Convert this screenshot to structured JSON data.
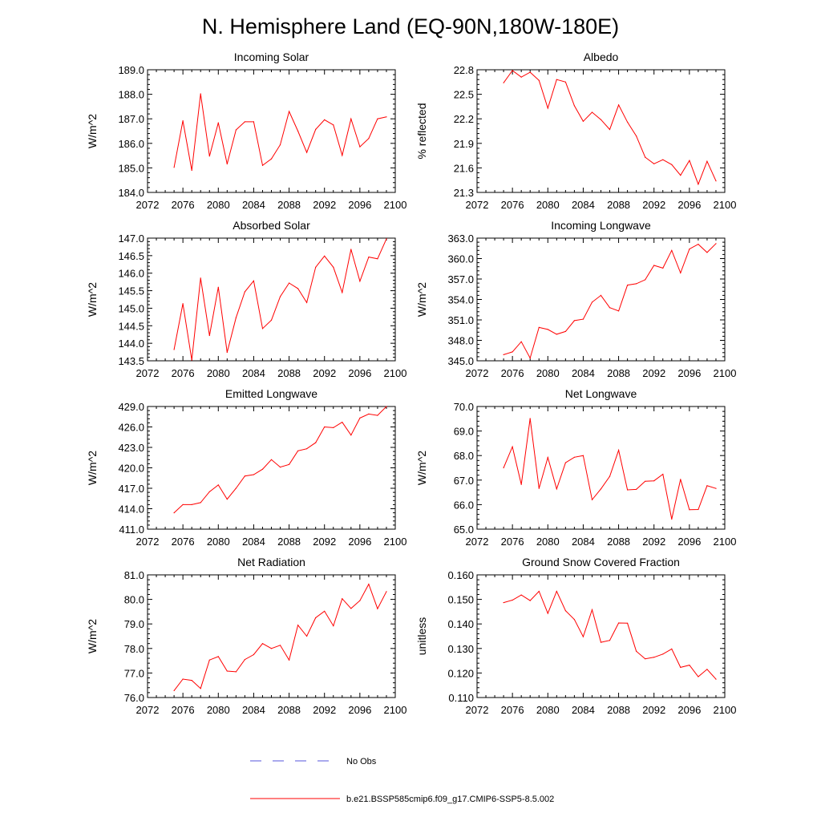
{
  "title": "N. Hemisphere Land (EQ-90N,180W-180E)",
  "legend": {
    "obs_label": "No Obs",
    "model_label": "b.e21.BSSP585cmip6.f09_g17.CMIP6-SSP5-8.5.002",
    "obs_color": "#5555dd",
    "model_color": "#ff0000"
  },
  "chart_data": [
    {
      "type": "line",
      "title": "Incoming Solar",
      "xlabel": "",
      "ylabel": "W/m^2",
      "xlim": [
        2072,
        2100
      ],
      "ylim": [
        184.0,
        189.0
      ],
      "xticks": [
        2072,
        2076,
        2080,
        2084,
        2088,
        2092,
        2096,
        2100
      ],
      "yticks": [
        "184.0",
        "185.0",
        "186.0",
        "187.0",
        "188.0",
        "189.0"
      ],
      "series": [
        {
          "color": "#ff0000",
          "x": [
            2075,
            2076,
            2077,
            2078,
            2079,
            2080,
            2081,
            2082,
            2083,
            2084,
            2085,
            2086,
            2087,
            2088,
            2089,
            2090,
            2091,
            2092,
            2093,
            2094,
            2095,
            2096,
            2097,
            2098,
            2099
          ],
          "values": [
            185.02,
            186.92,
            184.9,
            188.02,
            185.48,
            186.84,
            185.16,
            186.55,
            186.88,
            186.88,
            185.1,
            185.37,
            185.94,
            187.3,
            186.5,
            185.63,
            186.57,
            186.96,
            186.75,
            185.51,
            187.0,
            185.86,
            186.2,
            187.0,
            187.08
          ]
        }
      ]
    },
    {
      "type": "line",
      "title": "Albedo",
      "xlabel": "",
      "ylabel": "% reflected",
      "xlim": [
        2072,
        2100
      ],
      "ylim": [
        21.3,
        22.8
      ],
      "xticks": [
        2072,
        2076,
        2080,
        2084,
        2088,
        2092,
        2096,
        2100
      ],
      "yticks": [
        "21.3",
        "21.6",
        "21.9",
        "22.2",
        "22.5",
        "22.8"
      ],
      "series": [
        {
          "color": "#ff0000",
          "x": [
            2075,
            2076,
            2077,
            2078,
            2079,
            2080,
            2081,
            2082,
            2083,
            2084,
            2085,
            2086,
            2087,
            2088,
            2089,
            2090,
            2091,
            2092,
            2093,
            2094,
            2095,
            2096,
            2097,
            2098,
            2099
          ],
          "values": [
            22.64,
            22.79,
            22.71,
            22.77,
            22.67,
            22.33,
            22.68,
            22.65,
            22.36,
            22.17,
            22.28,
            22.19,
            22.07,
            22.37,
            22.16,
            21.99,
            21.73,
            21.65,
            21.7,
            21.64,
            21.51,
            21.69,
            21.4,
            21.68,
            21.44
          ]
        }
      ]
    },
    {
      "type": "line",
      "title": "Absorbed Solar",
      "xlabel": "",
      "ylabel": "W/m^2",
      "xlim": [
        2072,
        2100
      ],
      "ylim": [
        143.5,
        147.0
      ],
      "xticks": [
        2072,
        2076,
        2080,
        2084,
        2088,
        2092,
        2096,
        2100
      ],
      "yticks": [
        "143.5",
        "144.0",
        "144.5",
        "145.0",
        "145.5",
        "146.0",
        "146.5",
        "147.0"
      ],
      "series": [
        {
          "color": "#ff0000",
          "x": [
            2075,
            2076,
            2077,
            2078,
            2079,
            2080,
            2081,
            2082,
            2083,
            2084,
            2085,
            2086,
            2087,
            2088,
            2089,
            2090,
            2091,
            2092,
            2093,
            2094,
            2095,
            2096,
            2097,
            2098,
            2099
          ],
          "values": [
            143.82,
            145.13,
            143.52,
            145.86,
            144.22,
            145.6,
            143.74,
            144.73,
            145.47,
            145.78,
            144.42,
            144.66,
            145.33,
            145.72,
            145.56,
            145.16,
            146.17,
            146.49,
            146.17,
            145.45,
            146.68,
            145.77,
            146.46,
            146.41,
            146.98
          ]
        }
      ]
    },
    {
      "type": "line",
      "title": "Incoming Longwave",
      "xlabel": "",
      "ylabel": "W/m^2",
      "xlim": [
        2072,
        2100
      ],
      "ylim": [
        345.0,
        363.0
      ],
      "xticks": [
        2072,
        2076,
        2080,
        2084,
        2088,
        2092,
        2096,
        2100
      ],
      "yticks": [
        "345.0",
        "348.0",
        "351.0",
        "354.0",
        "357.0",
        "360.0",
        "363.0"
      ],
      "series": [
        {
          "color": "#ff0000",
          "x": [
            2075,
            2076,
            2077,
            2078,
            2079,
            2080,
            2081,
            2082,
            2083,
            2084,
            2085,
            2086,
            2087,
            2088,
            2089,
            2090,
            2091,
            2092,
            2093,
            2094,
            2095,
            2096,
            2097,
            2098,
            2099
          ],
          "values": [
            345.9,
            346.3,
            347.8,
            345.4,
            349.9,
            349.6,
            348.9,
            349.3,
            350.9,
            351.1,
            353.6,
            354.6,
            352.8,
            352.3,
            356.1,
            356.3,
            356.9,
            359.0,
            358.6,
            361.2,
            357.9,
            361.4,
            362.1,
            360.9,
            362.2
          ]
        }
      ]
    },
    {
      "type": "line",
      "title": "Emitted Longwave",
      "xlabel": "",
      "ylabel": "W/m^2",
      "xlim": [
        2072,
        2100
      ],
      "ylim": [
        411.0,
        429.0
      ],
      "xticks": [
        2072,
        2076,
        2080,
        2084,
        2088,
        2092,
        2096,
        2100
      ],
      "yticks": [
        "411.0",
        "414.0",
        "417.0",
        "420.0",
        "423.0",
        "426.0",
        "429.0"
      ],
      "series": [
        {
          "color": "#ff0000",
          "x": [
            2075,
            2076,
            2077,
            2078,
            2079,
            2080,
            2081,
            2082,
            2083,
            2084,
            2085,
            2086,
            2087,
            2088,
            2089,
            2090,
            2091,
            2092,
            2093,
            2094,
            2095,
            2096,
            2097,
            2098,
            2099
          ],
          "values": [
            413.4,
            414.6,
            414.6,
            414.9,
            416.5,
            417.5,
            415.4,
            417.0,
            418.8,
            419.0,
            419.8,
            421.2,
            420.1,
            420.5,
            422.5,
            422.8,
            423.7,
            426.0,
            425.9,
            426.7,
            424.8,
            427.3,
            427.9,
            427.7,
            429.0
          ]
        }
      ]
    },
    {
      "type": "line",
      "title": "Net Longwave",
      "xlabel": "",
      "ylabel": "W/m^2",
      "xlim": [
        2072,
        2100
      ],
      "ylim": [
        65.0,
        70.0
      ],
      "xticks": [
        2072,
        2076,
        2080,
        2084,
        2088,
        2092,
        2096,
        2100
      ],
      "yticks": [
        "65.0",
        "66.0",
        "67.0",
        "68.0",
        "69.0",
        "70.0"
      ],
      "series": [
        {
          "color": "#ff0000",
          "x": [
            2075,
            2076,
            2077,
            2078,
            2079,
            2080,
            2081,
            2082,
            2083,
            2084,
            2085,
            2086,
            2087,
            2088,
            2089,
            2090,
            2091,
            2092,
            2093,
            2094,
            2095,
            2096,
            2097,
            2098,
            2099
          ],
          "values": [
            67.5,
            68.36,
            66.82,
            69.51,
            66.66,
            67.92,
            66.64,
            67.71,
            67.93,
            68.0,
            66.2,
            66.64,
            67.15,
            68.22,
            66.6,
            66.62,
            66.95,
            66.97,
            67.24,
            65.41,
            67.03,
            65.79,
            65.8,
            66.77,
            66.66
          ]
        }
      ]
    },
    {
      "type": "line",
      "title": "Net Radiation",
      "xlabel": "",
      "ylabel": "W/m^2",
      "xlim": [
        2072,
        2100
      ],
      "ylim": [
        76.0,
        81.0
      ],
      "xticks": [
        2072,
        2076,
        2080,
        2084,
        2088,
        2092,
        2096,
        2100
      ],
      "yticks": [
        "76.0",
        "77.0",
        "78.0",
        "79.0",
        "80.0",
        "81.0"
      ],
      "series": [
        {
          "color": "#ff0000",
          "x": [
            2075,
            2076,
            2077,
            2078,
            2079,
            2080,
            2081,
            2082,
            2083,
            2084,
            2085,
            2086,
            2087,
            2088,
            2089,
            2090,
            2091,
            2092,
            2093,
            2094,
            2095,
            2096,
            2097,
            2098,
            2099
          ],
          "values": [
            76.28,
            76.75,
            76.7,
            76.37,
            77.53,
            77.67,
            77.08,
            77.05,
            77.55,
            77.75,
            78.2,
            78.0,
            78.13,
            77.53,
            78.95,
            78.5,
            79.25,
            79.52,
            78.92,
            80.03,
            79.63,
            79.95,
            80.62,
            79.62,
            80.32
          ]
        }
      ]
    },
    {
      "type": "line",
      "title": "Ground Snow Covered Fraction",
      "xlabel": "",
      "ylabel": "unitless",
      "xlim": [
        2072,
        2100
      ],
      "ylim": [
        0.11,
        0.16
      ],
      "xticks": [
        2072,
        2076,
        2080,
        2084,
        2088,
        2092,
        2096,
        2100
      ],
      "yticks": [
        "0.110",
        "0.120",
        "0.130",
        "0.140",
        "0.150",
        "0.160"
      ],
      "series": [
        {
          "color": "#ff0000",
          "x": [
            2075,
            2076,
            2077,
            2078,
            2079,
            2080,
            2081,
            2082,
            2083,
            2084,
            2085,
            2086,
            2087,
            2088,
            2089,
            2090,
            2091,
            2092,
            2093,
            2094,
            2095,
            2096,
            2097,
            2098,
            2099
          ],
          "values": [
            0.1487,
            0.1497,
            0.1518,
            0.1495,
            0.1533,
            0.1443,
            0.1533,
            0.1454,
            0.1418,
            0.1348,
            0.1458,
            0.1325,
            0.1333,
            0.1404,
            0.1403,
            0.1289,
            0.1258,
            0.1264,
            0.1277,
            0.1298,
            0.1223,
            0.1232,
            0.1185,
            0.1215,
            0.1175
          ]
        }
      ]
    }
  ]
}
